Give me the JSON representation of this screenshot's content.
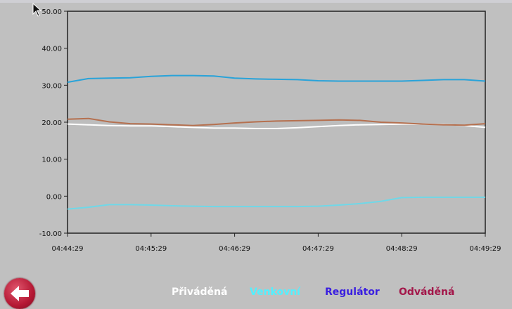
{
  "chart_data": {
    "type": "line",
    "title": "",
    "xlabel": "",
    "ylabel": "",
    "x_ticks": [
      "04:44:29",
      "04:45:29",
      "04:46:29",
      "04:47:29",
      "04:48:29",
      "04:49:29"
    ],
    "y_ticks": [
      "50.00",
      "40.00",
      "30.00",
      "20.00",
      "10.00",
      "0.00",
      "-10.00"
    ],
    "ylim": [
      -10,
      50
    ],
    "xlim_minutes": [
      0,
      5
    ],
    "grid": false,
    "x": [
      0,
      0.25,
      0.5,
      0.75,
      1,
      1.25,
      1.5,
      1.75,
      2,
      2.25,
      2.5,
      2.75,
      3,
      3.25,
      3.5,
      3.75,
      4,
      4.25,
      4.5,
      4.75,
      5
    ],
    "series": [
      {
        "name": "Přiváděná",
        "color": "#ffffff",
        "values": [
          19.5,
          19.3,
          19.1,
          19.0,
          19.0,
          18.8,
          18.6,
          18.4,
          18.4,
          18.3,
          18.3,
          18.5,
          18.8,
          19.1,
          19.3,
          19.4,
          19.5,
          19.5,
          19.4,
          19.1,
          18.6
        ]
      },
      {
        "name": "Venkovní",
        "color": "#6fd8e8",
        "values": [
          -3.5,
          -3.0,
          -2.3,
          -2.3,
          -2.4,
          -2.6,
          -2.7,
          -2.8,
          -2.8,
          -2.8,
          -2.8,
          -2.8,
          -2.7,
          -2.4,
          -2.0,
          -1.4,
          -0.4,
          -0.3,
          -0.3,
          -0.3,
          -0.3
        ]
      },
      {
        "name": "Regulátor",
        "color": "#29a3d9",
        "values": [
          30.8,
          31.8,
          31.9,
          32.0,
          32.4,
          32.6,
          32.6,
          32.5,
          31.9,
          31.7,
          31.6,
          31.5,
          31.2,
          31.1,
          31.1,
          31.1,
          31.1,
          31.3,
          31.5,
          31.5,
          31.1
        ]
      },
      {
        "name": "Odváděná",
        "color": "#b5704f",
        "values": [
          20.8,
          21.0,
          20.1,
          19.6,
          19.5,
          19.3,
          19.1,
          19.4,
          19.8,
          20.1,
          20.3,
          20.4,
          20.5,
          20.6,
          20.5,
          20.0,
          19.8,
          19.5,
          19.3,
          19.2,
          19.6
        ]
      }
    ]
  },
  "legend": [
    {
      "label": "Přiváděná",
      "color": "#ffffff"
    },
    {
      "label": "Venkovní",
      "color": "#52f0ff"
    },
    {
      "label": "Regulátor",
      "color": "#3a1fe0"
    },
    {
      "label": "Odváděná",
      "color": "#a3174a"
    }
  ],
  "back_button": {
    "icon": "back-arrow-icon",
    "color": "#c2203c"
  }
}
